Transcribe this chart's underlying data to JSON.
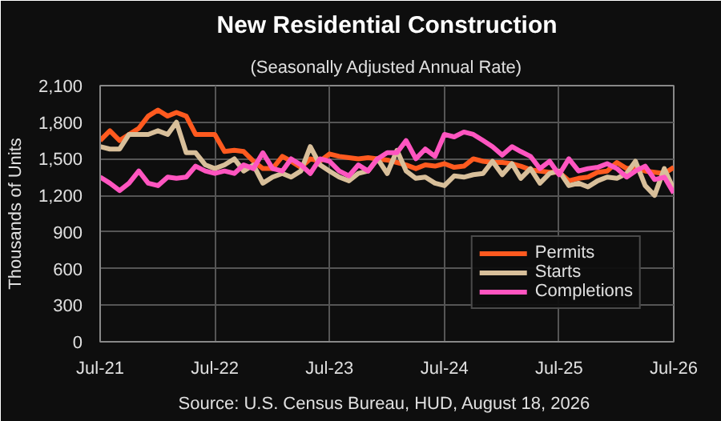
{
  "chart_data": {
    "type": "line",
    "title": "New Residential Construction",
    "subtitle": "(Seasonally Adjusted Annual Rate)",
    "ylabel": "Thousands of Units",
    "annotations": [
      "Source:  U.S. Census Bureau, HUD, August 18, 2026"
    ],
    "x": [
      "2021-07",
      "2021-08",
      "2021-09",
      "2021-10",
      "2021-11",
      "2021-12",
      "2022-01",
      "2022-02",
      "2022-03",
      "2022-04",
      "2022-05",
      "2022-06",
      "2022-07",
      "2022-08",
      "2022-09",
      "2022-10",
      "2022-11",
      "2022-12",
      "2023-01",
      "2023-02",
      "2023-03",
      "2023-04",
      "2023-05",
      "2023-06",
      "2023-07",
      "2023-08",
      "2023-09",
      "2023-10",
      "2023-11",
      "2023-12",
      "2024-01",
      "2024-02",
      "2024-03",
      "2024-04",
      "2024-05",
      "2024-06",
      "2024-07",
      "2024-08",
      "2024-09",
      "2024-10",
      "2024-11",
      "2024-12",
      "2025-01",
      "2025-02",
      "2025-03",
      "2025-04",
      "2025-05",
      "2025-06",
      "2025-07",
      "2025-08",
      "2025-09",
      "2025-10",
      "2025-11",
      "2025-12",
      "2026-01",
      "2026-02",
      "2026-03",
      "2026-04",
      "2026-05",
      "2026-06",
      "2026-07"
    ],
    "series": [
      {
        "name": "Permits",
        "color": "#ff5a1f",
        "values": [
          1650,
          1730,
          1650,
          1700,
          1750,
          1850,
          1900,
          1850,
          1880,
          1850,
          1700,
          1700,
          1700,
          1560,
          1570,
          1560,
          1480,
          1420,
          1420,
          1520,
          1480,
          1430,
          1500,
          1480,
          1540,
          1520,
          1510,
          1500,
          1510,
          1500,
          1490,
          1470,
          1450,
          1420,
          1450,
          1440,
          1460,
          1430,
          1440,
          1500,
          1480,
          1470,
          1470,
          1460,
          1440,
          1410,
          1400,
          1390,
          1390,
          1320,
          1340,
          1350,
          1390,
          1400,
          1470,
          1420,
          1430,
          1400,
          1390,
          1380,
          1430
        ]
      },
      {
        "name": "Starts",
        "color": "#d8bf9a",
        "values": [
          1600,
          1580,
          1580,
          1700,
          1700,
          1700,
          1730,
          1700,
          1800,
          1550,
          1550,
          1450,
          1420,
          1450,
          1500,
          1400,
          1450,
          1300,
          1350,
          1380,
          1350,
          1400,
          1600,
          1450,
          1400,
          1350,
          1320,
          1380,
          1400,
          1500,
          1380,
          1570,
          1400,
          1340,
          1350,
          1300,
          1280,
          1360,
          1350,
          1370,
          1380,
          1480,
          1370,
          1460,
          1340,
          1420,
          1300,
          1380,
          1400,
          1280,
          1300,
          1270,
          1320,
          1350,
          1340,
          1380,
          1480,
          1280,
          1200,
          1420,
          1250
        ]
      },
      {
        "name": "Completions",
        "color": "#ff55c0",
        "values": [
          1350,
          1300,
          1240,
          1300,
          1400,
          1300,
          1280,
          1350,
          1340,
          1350,
          1440,
          1400,
          1380,
          1400,
          1380,
          1450,
          1420,
          1550,
          1420,
          1400,
          1500,
          1450,
          1380,
          1500,
          1480,
          1400,
          1360,
          1450,
          1400,
          1500,
          1550,
          1550,
          1650,
          1500,
          1580,
          1520,
          1700,
          1680,
          1720,
          1700,
          1650,
          1600,
          1530,
          1600,
          1560,
          1520,
          1420,
          1480,
          1370,
          1500,
          1400,
          1420,
          1430,
          1460,
          1420,
          1350,
          1400,
          1440,
          1330,
          1350,
          1220
        ]
      }
    ],
    "xlim": [
      "2021-07",
      "2026-07"
    ],
    "xticks": [
      {
        "value": "2021-07",
        "label": "Jul-21"
      },
      {
        "value": "2022-07",
        "label": "Jul-22"
      },
      {
        "value": "2023-07",
        "label": "Jul-23"
      },
      {
        "value": "2024-07",
        "label": "Jul-24"
      },
      {
        "value": "2025-07",
        "label": "Jul-25"
      },
      {
        "value": "2026-07",
        "label": "Jul-26"
      }
    ],
    "ylim": [
      0,
      2100
    ],
    "yticks": [
      {
        "value": 0,
        "label": "0"
      },
      {
        "value": 300,
        "label": "300"
      },
      {
        "value": 600,
        "label": "600"
      },
      {
        "value": 900,
        "label": "900"
      },
      {
        "value": 1200,
        "label": "1,200"
      },
      {
        "value": 1500,
        "label": "1,500"
      },
      {
        "value": 1800,
        "label": "1,800"
      },
      {
        "value": 2100,
        "label": "2,100"
      }
    ],
    "grid": true,
    "legend": "bottom right",
    "line_style": "solid"
  }
}
